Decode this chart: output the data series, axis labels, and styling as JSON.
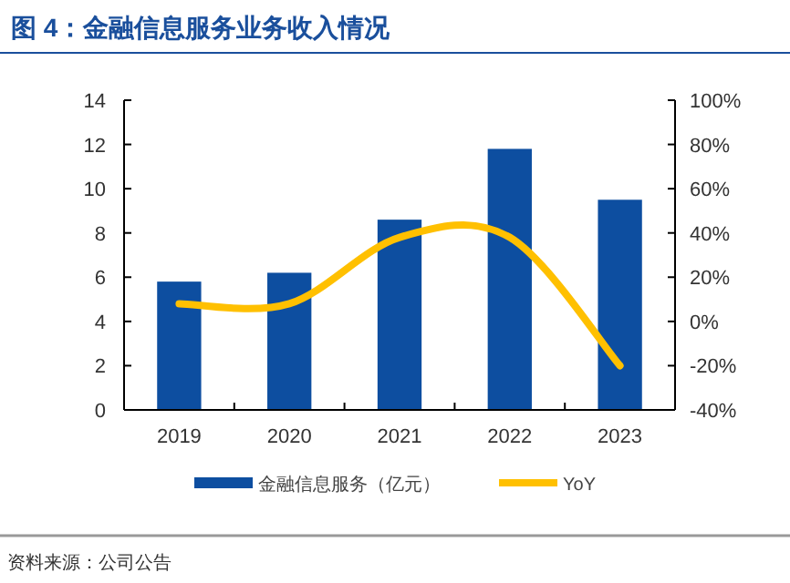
{
  "chart_data": {
    "type": "bar",
    "title": "图 4：金融信息服务业务收入情况",
    "categories": [
      "2019",
      "2020",
      "2021",
      "2022",
      "2023"
    ],
    "series": [
      {
        "name": "金融信息服务（亿元）",
        "color": "#0d4ea0",
        "values": [
          5.8,
          6.2,
          8.6,
          11.8,
          9.5
        ]
      },
      {
        "name": "YoY",
        "type": "line",
        "axis": "y2",
        "color": "#ffc000",
        "values": [
          8,
          8,
          38,
          38,
          -20
        ]
      }
    ],
    "ylim": [
      0,
      14
    ],
    "yticks": [
      0,
      2,
      4,
      6,
      8,
      10,
      12,
      14
    ],
    "y2lim": [
      -40,
      100
    ],
    "y2ticks": [
      {
        "value": -40,
        "label": "-40%"
      },
      {
        "value": -20,
        "label": "-20%"
      },
      {
        "value": 0,
        "label": "0%"
      },
      {
        "value": 20,
        "label": "20%"
      },
      {
        "value": 40,
        "label": "40%"
      },
      {
        "value": 60,
        "label": "60%"
      },
      {
        "value": 80,
        "label": "80%"
      },
      {
        "value": 100,
        "label": "100%"
      }
    ],
    "grid": false,
    "legend": "bottom",
    "marker": "none",
    "annotations": [
      "资料来源：公司公告"
    ]
  }
}
